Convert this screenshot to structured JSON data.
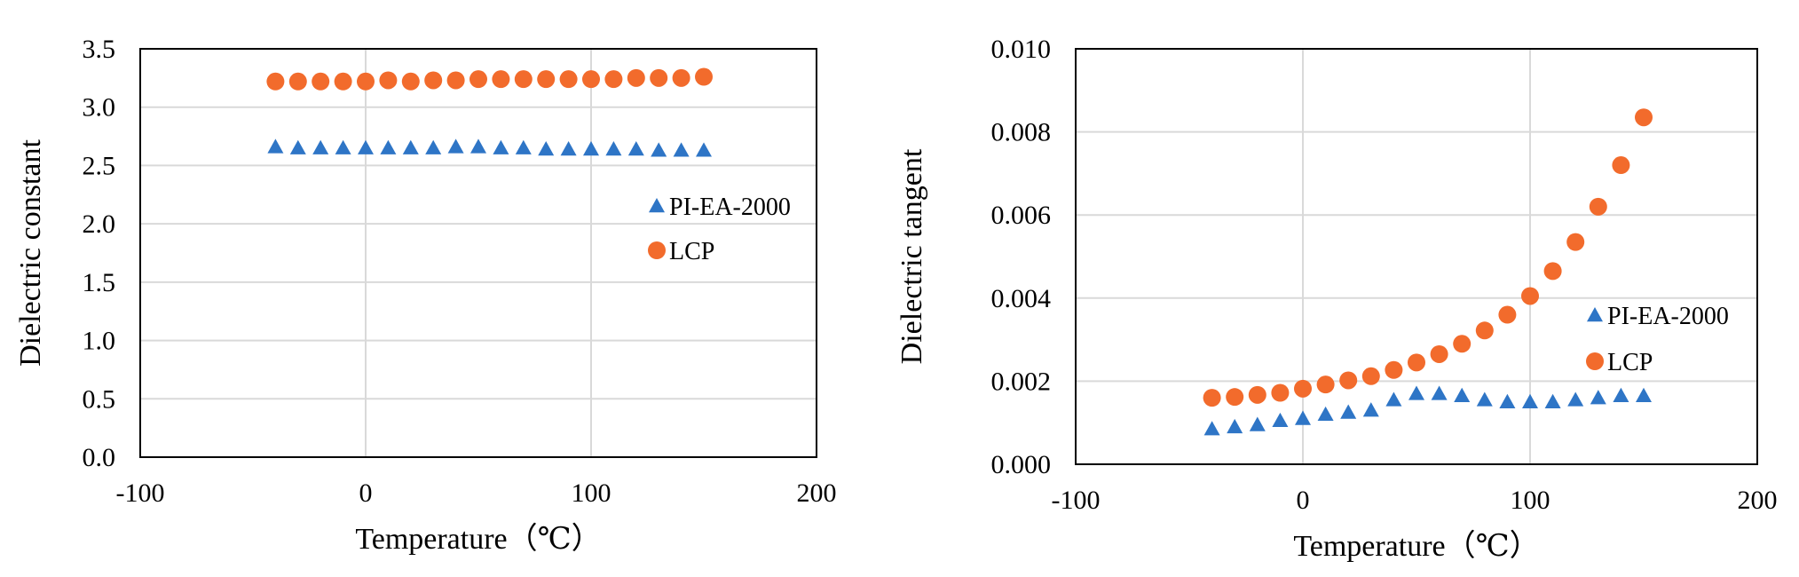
{
  "chart_data": [
    {
      "type": "scatter",
      "xlabel": "Temperature（℃）",
      "ylabel": "Dielectric constant",
      "xlim": [
        -100,
        200
      ],
      "ylim": [
        0,
        3.5
      ],
      "xticks": [
        "-100",
        "0",
        "100",
        "200"
      ],
      "yticks": [
        "0.0",
        "0.5",
        "1.0",
        "1.5",
        "2.0",
        "2.5",
        "3.0",
        "3.5"
      ],
      "grid": true,
      "legend_position": "right",
      "x": [
        -40,
        -30,
        -20,
        -10,
        0,
        10,
        20,
        30,
        40,
        50,
        60,
        70,
        80,
        90,
        100,
        110,
        120,
        130,
        140,
        150
      ],
      "series": [
        {
          "name": "PI-EA-2000",
          "marker": "triangle",
          "color": "#2E75C6",
          "values": [
            2.66,
            2.65,
            2.65,
            2.65,
            2.65,
            2.65,
            2.65,
            2.65,
            2.66,
            2.66,
            2.65,
            2.65,
            2.64,
            2.64,
            2.64,
            2.64,
            2.64,
            2.63,
            2.63,
            2.63
          ]
        },
        {
          "name": "LCP",
          "marker": "circle",
          "color": "#F26B2C",
          "values": [
            3.22,
            3.22,
            3.22,
            3.22,
            3.22,
            3.23,
            3.22,
            3.23,
            3.23,
            3.24,
            3.24,
            3.24,
            3.24,
            3.24,
            3.24,
            3.24,
            3.25,
            3.25,
            3.25,
            3.26
          ]
        }
      ]
    },
    {
      "type": "scatter",
      "xlabel": "Temperature（℃）",
      "ylabel": "Dielectric tangent",
      "xlim": [
        -100,
        200
      ],
      "ylim": [
        0,
        0.01
      ],
      "xticks": [
        "-100",
        "0",
        "100",
        "200"
      ],
      "yticks": [
        "0.000",
        "0.002",
        "0.004",
        "0.006",
        "0.008",
        "0.010"
      ],
      "grid": true,
      "legend_position": "right",
      "x": [
        -40,
        -30,
        -20,
        -10,
        0,
        10,
        20,
        30,
        40,
        50,
        60,
        70,
        80,
        90,
        100,
        110,
        120,
        130,
        140,
        150
      ],
      "series": [
        {
          "name": "PI-EA-2000",
          "marker": "triangle",
          "color": "#2E75C6",
          "values": [
            0.00085,
            0.0009,
            0.00095,
            0.00105,
            0.0011,
            0.0012,
            0.00125,
            0.0013,
            0.00155,
            0.0017,
            0.0017,
            0.00165,
            0.00155,
            0.0015,
            0.0015,
            0.0015,
            0.00155,
            0.0016,
            0.00165,
            0.00165
          ]
        },
        {
          "name": "LCP",
          "marker": "circle",
          "color": "#F26B2C",
          "values": [
            0.0016,
            0.00162,
            0.00167,
            0.00172,
            0.00182,
            0.00192,
            0.00202,
            0.00212,
            0.00227,
            0.00245,
            0.00265,
            0.0029,
            0.00322,
            0.0036,
            0.00405,
            0.00465,
            0.00535,
            0.0062,
            0.0072,
            0.00835
          ]
        }
      ]
    }
  ]
}
